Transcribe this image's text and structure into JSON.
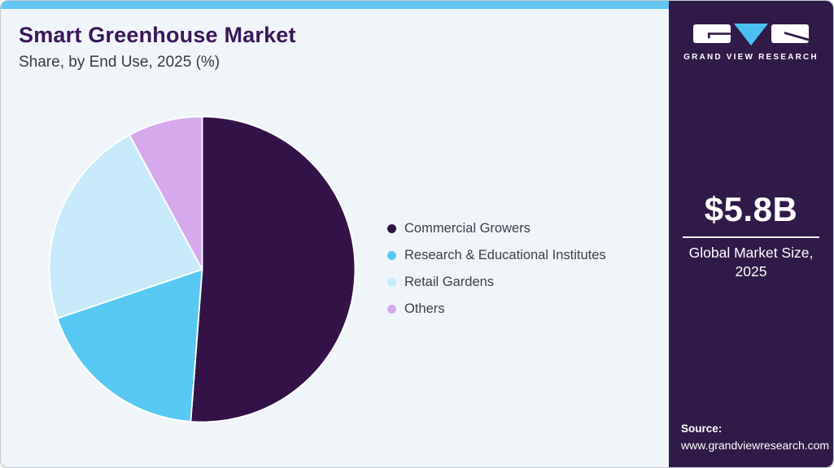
{
  "header": {
    "title": "Smart Greenhouse Market",
    "subtitle": "Share, by End Use, 2025 (%)"
  },
  "chart_data": {
    "type": "pie",
    "title": "Smart Greenhouse Market Share, by End Use, 2025 (%)",
    "unit": "%",
    "start_angle_deg": 0,
    "direction": "clockwise",
    "legend_position": "right",
    "segments": [
      {
        "label": "Commercial Growers",
        "value": 51.2,
        "color": "#331347"
      },
      {
        "label": "Research & Educational Institutes",
        "value": 18.6,
        "color": "#57c8f2"
      },
      {
        "label": "Retail Gardens",
        "value": 22.3,
        "color": "#c8eafb"
      },
      {
        "label": "Others",
        "value": 7.9,
        "color": "#d5a9ec"
      }
    ]
  },
  "panel": {
    "logo_text": "GRAND VIEW RESEARCH",
    "market_size_value": "$5.8B",
    "market_size_label": "Global Market Size, 2025",
    "source_label": "Source:",
    "source_url": "www.grandviewresearch.com",
    "background": "#2f1a48"
  },
  "colors": {
    "top_bar": "#62c6f1",
    "card_background": "#f0f5fa",
    "title_text": "#3a1659",
    "subtitle_text": "#3a3a42",
    "legend_text": "#3e3e48",
    "slice_border": "#ffffff",
    "logo_triangle": "#49c0ef"
  }
}
